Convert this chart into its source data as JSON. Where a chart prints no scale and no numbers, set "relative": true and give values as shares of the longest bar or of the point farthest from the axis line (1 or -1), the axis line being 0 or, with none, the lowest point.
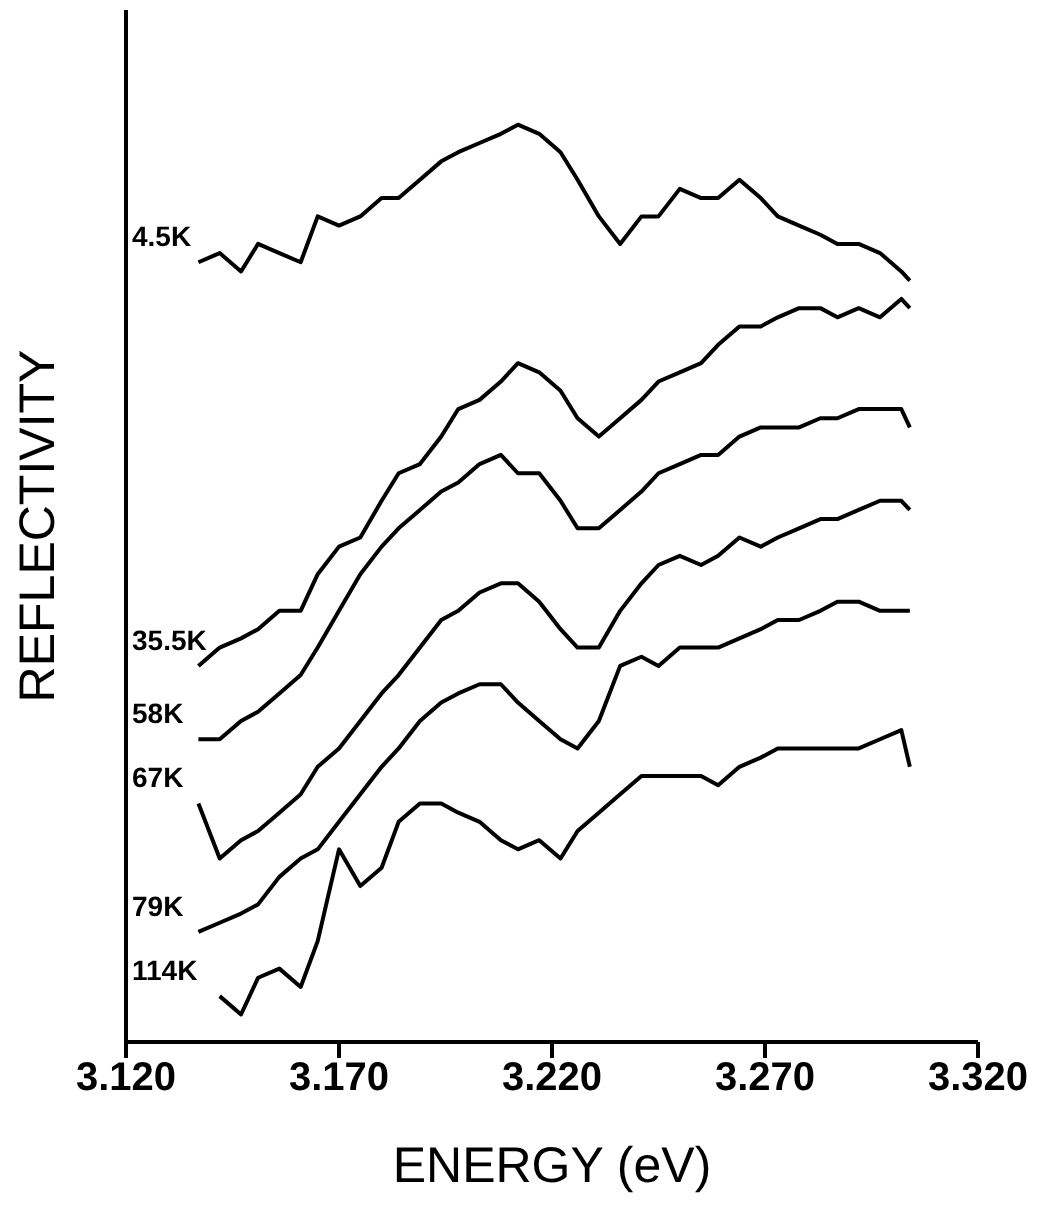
{
  "chart_data": {
    "type": "line",
    "relative": true,
    "xlabel": "ENERGY (eV)",
    "ylabel": "REFLECTIVITY",
    "x": [
      3.137,
      3.142,
      3.147,
      3.151,
      3.156,
      3.161,
      3.165,
      3.17,
      3.175,
      3.18,
      3.184,
      3.189,
      3.194,
      3.198,
      3.203,
      3.208,
      3.212,
      3.217,
      3.222,
      3.226,
      3.231,
      3.236,
      3.241,
      3.245,
      3.25,
      3.255,
      3.259,
      3.264,
      3.269,
      3.273,
      3.278,
      3.283,
      3.287,
      3.292,
      3.297,
      3.302,
      3.304
    ],
    "xlim": [
      3.12,
      3.32
    ],
    "xticks": [
      {
        "value": 3.12,
        "label": "3.120"
      },
      {
        "value": 3.17,
        "label": "3.170"
      },
      {
        "value": 3.22,
        "label": "3.220"
      },
      {
        "value": 3.27,
        "label": "3.270"
      },
      {
        "value": 3.32,
        "label": "3.320"
      }
    ],
    "series": [
      {
        "name": "4.5K",
        "color": "#000000",
        "values": [
          0.85,
          0.86,
          0.84,
          0.87,
          0.86,
          0.85,
          0.9,
          0.89,
          0.9,
          0.92,
          0.92,
          0.94,
          0.96,
          0.97,
          0.98,
          0.99,
          1,
          0.99,
          0.97,
          0.94,
          0.9,
          0.87,
          0.9,
          0.9,
          0.93,
          0.92,
          0.92,
          0.94,
          0.92,
          0.9,
          0.89,
          0.88,
          0.87,
          0.87,
          0.86,
          0.84,
          0.83
        ]
      },
      {
        "name": "35.5K",
        "color": "#000000",
        "values": [
          0.41,
          0.43,
          0.44,
          0.45,
          0.47,
          0.47,
          0.51,
          0.54,
          0.55,
          0.59,
          0.62,
          0.63,
          0.66,
          0.69,
          0.7,
          0.72,
          0.74,
          0.73,
          0.71,
          0.68,
          0.66,
          0.68,
          0.7,
          0.72,
          0.73,
          0.74,
          0.76,
          0.78,
          0.78,
          0.79,
          0.8,
          0.8,
          0.79,
          0.8,
          0.79,
          0.81,
          0.8
        ]
      },
      {
        "name": "58K",
        "color": "#000000",
        "values": [
          0.33,
          0.33,
          0.35,
          0.36,
          0.38,
          0.4,
          0.43,
          0.47,
          0.51,
          0.54,
          0.56,
          0.58,
          0.6,
          0.61,
          0.63,
          0.64,
          0.62,
          0.62,
          0.59,
          0.56,
          0.56,
          0.58,
          0.6,
          0.62,
          0.63,
          0.64,
          0.64,
          0.66,
          0.67,
          0.67,
          0.67,
          0.68,
          0.68,
          0.69,
          0.69,
          0.69,
          0.67
        ]
      },
      {
        "name": "67K",
        "color": "#000000",
        "values": [
          0.26,
          0.2,
          0.22,
          0.23,
          0.25,
          0.27,
          0.3,
          0.32,
          0.35,
          0.38,
          0.4,
          0.43,
          0.46,
          0.47,
          0.49,
          0.5,
          0.5,
          0.48,
          0.45,
          0.43,
          0.43,
          0.47,
          0.5,
          0.52,
          0.53,
          0.52,
          0.53,
          0.55,
          0.54,
          0.55,
          0.56,
          0.57,
          0.57,
          0.58,
          0.59,
          0.59,
          0.58
        ]
      },
      {
        "name": "79K",
        "color": "#000000",
        "values": [
          0.12,
          0.13,
          0.14,
          0.15,
          0.18,
          0.2,
          0.21,
          0.24,
          0.27,
          0.3,
          0.32,
          0.35,
          0.37,
          0.38,
          0.39,
          0.39,
          0.37,
          0.35,
          0.33,
          0.32,
          0.35,
          0.41,
          0.42,
          0.41,
          0.43,
          0.43,
          0.43,
          0.44,
          0.45,
          0.46,
          0.46,
          0.47,
          0.48,
          0.48,
          0.47,
          0.47,
          0.47
        ]
      },
      {
        "name": "114K",
        "color": "#000000",
        "values": [
          null,
          0.05,
          0.03,
          0.07,
          0.08,
          0.06,
          0.11,
          0.21,
          0.17,
          0.19,
          0.24,
          0.26,
          0.26,
          0.25,
          0.24,
          0.22,
          0.21,
          0.22,
          0.2,
          0.23,
          0.25,
          0.27,
          0.29,
          0.29,
          0.29,
          0.29,
          0.28,
          0.3,
          0.31,
          0.32,
          0.32,
          0.32,
          0.32,
          0.32,
          0.33,
          0.34,
          0.3
        ]
      }
    ]
  }
}
